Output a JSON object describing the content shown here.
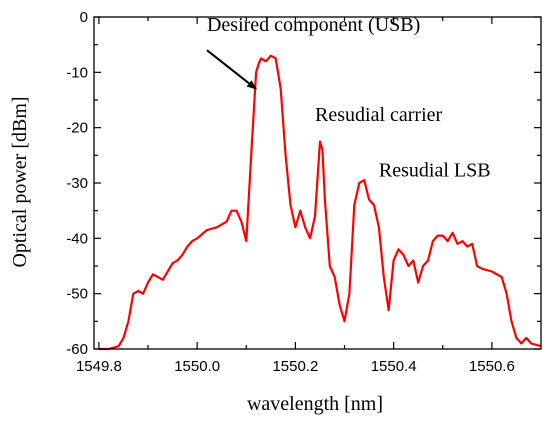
{
  "chart_data": {
    "type": "line",
    "xlabel": "wavelength [nm]",
    "ylabel": "Optical power [dBm]",
    "xlim": [
      1549.79,
      1550.7
    ],
    "ylim": [
      -60,
      0
    ],
    "x_ticks": [
      1549.8,
      1550.0,
      1550.2,
      1550.4,
      1550.6
    ],
    "x_tick_labels": [
      "1549.8",
      "1550.0",
      "1550.2",
      "1550.4",
      "1550.6"
    ],
    "y_ticks": [
      0,
      -10,
      -20,
      -30,
      -40,
      -50,
      -60
    ],
    "y_tick_labels": [
      "0",
      "-10",
      "-20",
      "-30",
      "-40",
      "-50",
      "-60"
    ],
    "grid": false,
    "series": [
      {
        "color": "#ff0000",
        "x": [
          1549.8,
          1549.82,
          1549.84,
          1549.85,
          1549.86,
          1549.87,
          1549.88,
          1549.89,
          1549.9,
          1549.91,
          1549.92,
          1549.93,
          1549.94,
          1549.95,
          1549.96,
          1549.97,
          1549.98,
          1549.99,
          1550.0,
          1550.02,
          1550.04,
          1550.06,
          1550.07,
          1550.08,
          1550.09,
          1550.1,
          1550.11,
          1550.12,
          1550.125,
          1550.13,
          1550.14,
          1550.15,
          1550.16,
          1550.17,
          1550.18,
          1550.19,
          1550.2,
          1550.21,
          1550.22,
          1550.23,
          1550.24,
          1550.25,
          1550.255,
          1550.26,
          1550.27,
          1550.28,
          1550.29,
          1550.3,
          1550.31,
          1550.32,
          1550.33,
          1550.34,
          1550.35,
          1550.36,
          1550.37,
          1550.38,
          1550.39,
          1550.4,
          1550.41,
          1550.42,
          1550.43,
          1550.44,
          1550.45,
          1550.46,
          1550.47,
          1550.48,
          1550.49,
          1550.5,
          1550.51,
          1550.52,
          1550.53,
          1550.54,
          1550.55,
          1550.56,
          1550.57,
          1550.58,
          1550.6,
          1550.62,
          1550.63,
          1550.64,
          1550.65,
          1550.66,
          1550.67,
          1550.68,
          1550.7
        ],
        "y": [
          -60,
          -60,
          -59.5,
          -58,
          -55,
          -50,
          -49.5,
          -50,
          -48,
          -46.5,
          -47,
          -47.5,
          -46,
          -44.5,
          -44,
          -43,
          -41.5,
          -40.5,
          -40,
          -38.5,
          -38,
          -37,
          -35,
          -35,
          -37,
          -40.5,
          -25,
          -10,
          -8.5,
          -7.5,
          -8,
          -7,
          -7.5,
          -13,
          -25,
          -34,
          -38,
          -35,
          -38,
          -40,
          -36,
          -22.5,
          -24,
          -33,
          -45,
          -47,
          -52,
          -55,
          -50,
          -34,
          -30,
          -29.5,
          -33,
          -34,
          -38,
          -47,
          -53,
          -44,
          -42,
          -43,
          -45,
          -44,
          -48,
          -45,
          -44,
          -40.5,
          -39.5,
          -39.5,
          -40.5,
          -39,
          -41,
          -40.5,
          -41.5,
          -41,
          -45,
          -45.5,
          -46,
          -47,
          -50,
          -55,
          -58,
          -59,
          -58,
          -59,
          -59.5
        ]
      }
    ],
    "annotations": [
      {
        "text": "Desired component (USB)",
        "x": 1550.02,
        "y": -2.5,
        "arrow_from": [
          1550.02,
          -6.0
        ],
        "arrow_to": [
          1550.12,
          -13.0
        ]
      },
      {
        "text": "Resudial carrier",
        "x": 1550.24,
        "y": -18.8,
        "arrow_from": null,
        "arrow_to": null
      },
      {
        "text": "Resudial LSB",
        "x": 1550.37,
        "y": -28.8,
        "arrow_from": null,
        "arrow_to": null
      }
    ]
  }
}
